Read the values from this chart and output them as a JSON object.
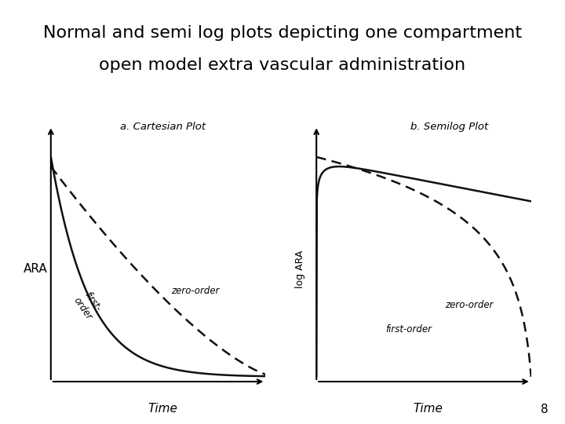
{
  "title_line1": "Normal and semi log plots depicting one compartment",
  "title_line2": "open model extra vascular administration",
  "title_fontsize": 16,
  "page_number": "8",
  "plot_a_title": "a. Cartesian Plot",
  "plot_b_title": "b. Semilog Plot",
  "ylabel_a": "ARA",
  "ylabel_b": "log ARA",
  "xlabel": "Time",
  "label_zero_order": "zero-order",
  "label_first_order": "first-order",
  "bg_color": "#ede9e3",
  "curve_color": "#111111",
  "t_max": 10
}
